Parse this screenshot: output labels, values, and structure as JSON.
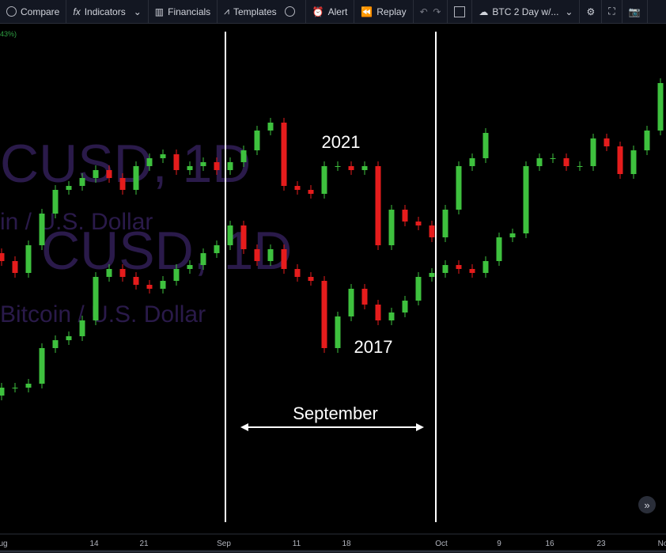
{
  "toolbar": {
    "items": [
      "Compare",
      "Indicators",
      "Financials",
      "Templates",
      "Alert",
      "Replay"
    ],
    "layout": "BTC 2 Day w/..."
  },
  "legend_fragment": "43%)",
  "chart_data": {
    "type": "candlestick",
    "watermarks": [
      "CUSD, 1D",
      "in / U.S. Dollar",
      "CUSD, 1D",
      "Bitcoin / U.S. Dollar"
    ],
    "annotations": [
      "2021",
      "2017",
      "September"
    ],
    "x_labels": [
      "ug",
      "14",
      "21",
      "Sep",
      "11",
      "18",
      "Oct",
      "9",
      "16",
      "23",
      "No"
    ],
    "ylim": [
      30,
      670
    ],
    "up_color": "#3ec13e",
    "down_color": "#e51c1c",
    "series": [
      {
        "open": [
          380,
          370,
          355,
          390,
          430,
          460,
          465,
          475,
          485,
          475,
          460,
          490,
          500,
          505,
          485,
          490,
          495,
          485,
          495,
          510,
          535,
          545,
          465,
          460,
          455,
          490,
          490,
          485,
          490,
          390,
          435,
          420,
          415,
          400,
          435,
          490,
          500
        ],
        "close": [
          370,
          355,
          390,
          430,
          460,
          465,
          475,
          485,
          475,
          460,
          490,
          500,
          505,
          485,
          490,
          495,
          485,
          495,
          510,
          535,
          545,
          465,
          460,
          455,
          490,
          490,
          485,
          490,
          390,
          435,
          420,
          415,
          400,
          435,
          490,
          500,
          532
        ]
      },
      {
        "open": [
          200,
          210,
          210,
          215,
          260,
          270,
          275,
          295,
          350,
          360,
          350,
          340,
          335,
          345,
          360,
          365,
          380,
          390,
          415,
          385,
          370,
          385,
          360,
          350,
          345,
          260,
          300,
          335,
          315,
          295,
          305,
          320,
          350,
          355,
          365,
          360,
          355,
          370,
          400,
          405,
          490,
          500,
          500,
          490,
          490,
          525,
          515,
          480,
          510,
          535
        ],
        "close": [
          210,
          210,
          215,
          260,
          270,
          275,
          295,
          350,
          360,
          350,
          340,
          335,
          345,
          360,
          365,
          380,
          390,
          415,
          385,
          370,
          385,
          360,
          350,
          345,
          260,
          300,
          335,
          315,
          295,
          305,
          320,
          350,
          355,
          365,
          360,
          355,
          370,
          400,
          405,
          490,
          500,
          500,
          490,
          490,
          525,
          515,
          480,
          510,
          535,
          595
        ]
      }
    ]
  }
}
